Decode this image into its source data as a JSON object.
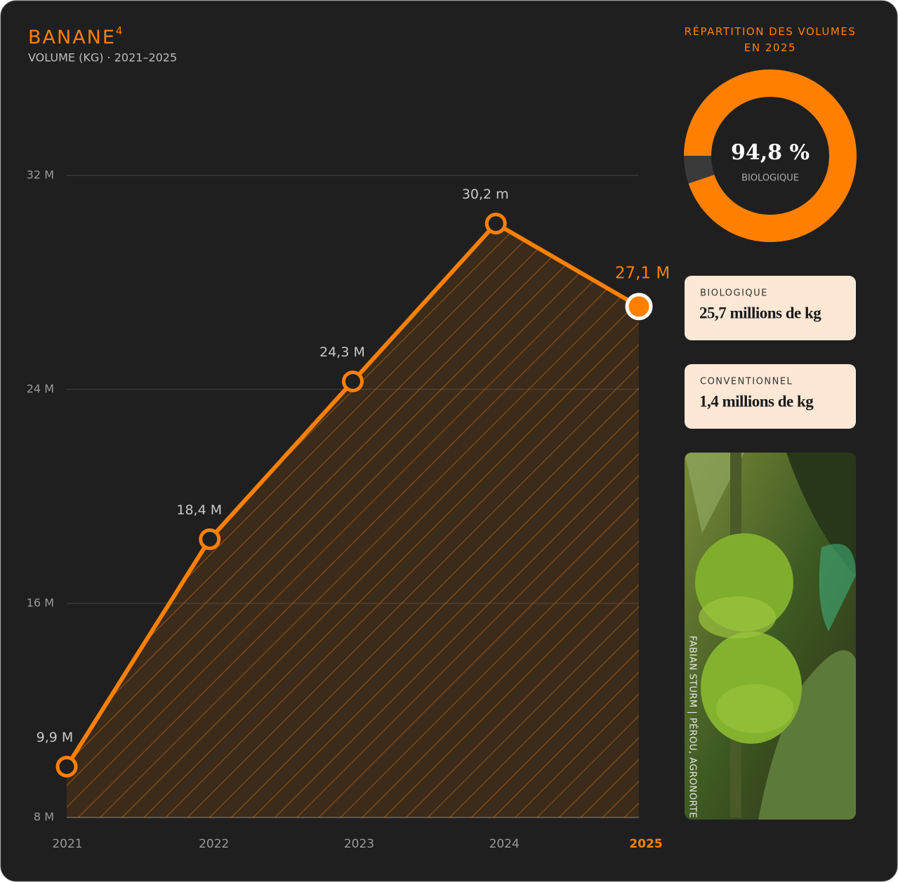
{
  "chart_data": [
    {
      "type": "area",
      "title": "BANANE",
      "title_note": "4",
      "subtitle": "VOLUME (KG) · 2021–2025",
      "categories": [
        "2021",
        "2022",
        "2023",
        "2024",
        "2025"
      ],
      "values": [
        9.9,
        18.4,
        24.3,
        30.2,
        27.1
      ],
      "value_labels": [
        "9,9 M",
        "18,4 M",
        "24,3 M",
        "30,2 m",
        "27,1 M"
      ],
      "color": "#ff8000",
      "highlight_index": 4,
      "ylim": [
        8,
        32
      ],
      "yticks": [
        {
          "value": 8,
          "label": "8 M"
        },
        {
          "value": 16,
          "label": "16 M"
        },
        {
          "value": 24,
          "label": "24 M"
        },
        {
          "value": 32,
          "label": "32 M"
        }
      ],
      "grid": true
    },
    {
      "type": "donut",
      "title": "RÉPARTITION DES VOLUMES EN 2025",
      "categories": [
        "BIOLOGIQUE",
        null
      ],
      "values": [
        94.8,
        5.2
      ],
      "value_labels": [
        "94,8 %",
        null
      ],
      "colors": [
        "#ff8000",
        "#3a3a3a"
      ]
    }
  ],
  "cards": [
    {
      "label": "BIOLOGIQUE",
      "value": "25,7 millions de kg"
    },
    {
      "label": "CONVENTIONNEL",
      "value": "1,4 millions de kg"
    }
  ],
  "photo": {
    "credit": "FABIAN STURM | PÉROU, AGRONORTE"
  }
}
